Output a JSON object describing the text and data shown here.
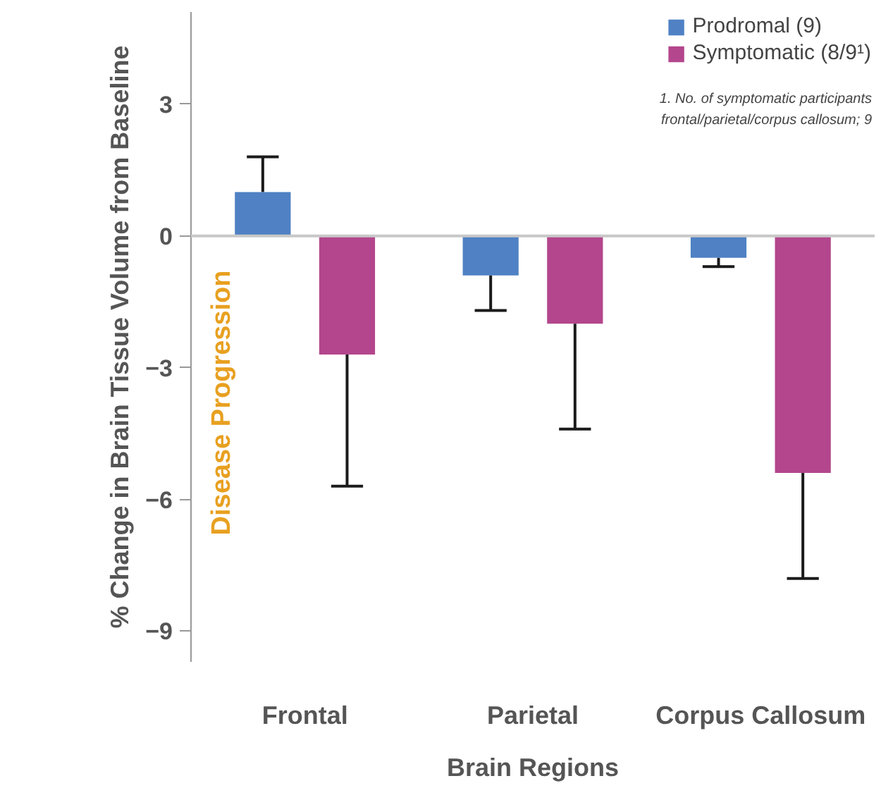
{
  "chart_data": {
    "type": "bar",
    "categories": [
      "Frontal",
      "Parietal",
      "Corpus Callosum"
    ],
    "series": [
      {
        "name": "Prodromal (9)",
        "color": "#4f81c4",
        "values": [
          1.0,
          -0.9,
          -0.5
        ],
        "errors": [
          [
            1.0,
            1.8
          ],
          [
            -1.7,
            -0.9
          ],
          [
            -0.7,
            -0.5
          ]
        ]
      },
      {
        "name": "Symptomatic (8/9¹)",
        "color": "#b3468c",
        "values": [
          -2.7,
          -2.0,
          -5.4
        ],
        "errors": [
          [
            -5.7,
            -2.7
          ],
          [
            -4.4,
            -2.0
          ],
          [
            -7.8,
            -5.4
          ]
        ]
      }
    ],
    "xlabel": "Brain Regions",
    "ylabel": "% Change in Brain Tissue Volume from Baseline",
    "ylim": [
      -9.7,
      5.1
    ],
    "yticks": [
      3,
      0,
      -3,
      -6,
      -9
    ],
    "ref_lines": [
      {
        "axis": "y",
        "value": 0,
        "color": "#c8c8c8"
      }
    ],
    "annotations": [
      "Disease Progression",
      "1. No. of symptomatic participants",
      "frontal/parietal/corpus callosum; 9"
    ],
    "legend": "top right",
    "grid": false
  }
}
